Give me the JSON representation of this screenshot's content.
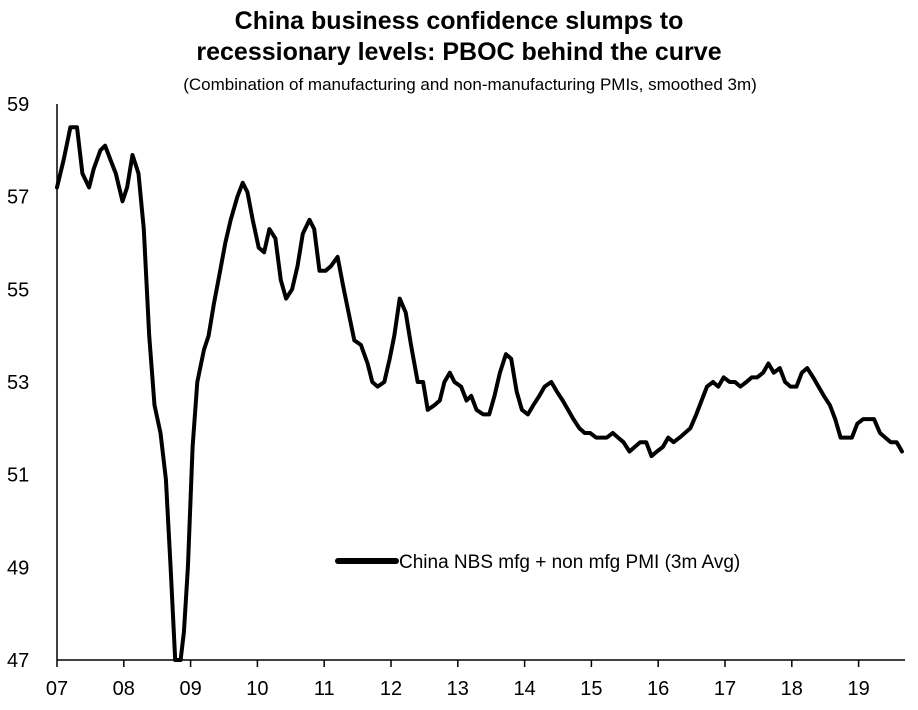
{
  "chart_data": {
    "type": "line",
    "title": "China business confidence slumps to recessionary levels: PBOC behind the curve",
    "title_lines": [
      "China business confidence slumps to",
      "recessionary levels: PBOC behind the curve"
    ],
    "subtitle": "(Combination of manufacturing and non-manufacturing PMIs, smoothed 3m)",
    "xlabel": "",
    "ylabel": "",
    "ylim": [
      47,
      59
    ],
    "yticks": [
      "59",
      "57",
      "55",
      "53",
      "51",
      "49",
      "47"
    ],
    "xticks": [
      "07",
      "08",
      "09",
      "10",
      "11",
      "12",
      "13",
      "14",
      "15",
      "16",
      "17",
      "18",
      "19"
    ],
    "xlim": [
      2007.0,
      2019.75
    ],
    "grid": false,
    "legend_position": "bottom-right",
    "line_color": "#000000",
    "series": [
      {
        "name": "China NBS mfg + non mfg PMI (3m Avg)",
        "points": [
          [
            2007.0,
            57.2
          ],
          [
            2007.1,
            57.8
          ],
          [
            2007.2,
            58.5
          ],
          [
            2007.3,
            58.5
          ],
          [
            2007.38,
            57.5
          ],
          [
            2007.48,
            57.2
          ],
          [
            2007.55,
            57.6
          ],
          [
            2007.65,
            58.0
          ],
          [
            2007.72,
            58.1
          ],
          [
            2007.8,
            57.8
          ],
          [
            2007.88,
            57.5
          ],
          [
            2007.98,
            56.9
          ],
          [
            2008.05,
            57.2
          ],
          [
            2008.13,
            57.9
          ],
          [
            2008.22,
            57.5
          ],
          [
            2008.3,
            56.3
          ],
          [
            2008.38,
            54.0
          ],
          [
            2008.46,
            52.5
          ],
          [
            2008.55,
            51.9
          ],
          [
            2008.63,
            50.9
          ],
          [
            2008.7,
            49.0
          ],
          [
            2008.77,
            47.0
          ],
          [
            2008.85,
            47.0
          ],
          [
            2008.9,
            47.6
          ],
          [
            2008.96,
            49.0
          ],
          [
            2009.03,
            51.6
          ],
          [
            2009.1,
            53.0
          ],
          [
            2009.2,
            53.7
          ],
          [
            2009.27,
            54.0
          ],
          [
            2009.35,
            54.7
          ],
          [
            2009.43,
            55.3
          ],
          [
            2009.52,
            56.0
          ],
          [
            2009.6,
            56.5
          ],
          [
            2009.7,
            57.0
          ],
          [
            2009.78,
            57.3
          ],
          [
            2009.85,
            57.1
          ],
          [
            2009.93,
            56.5
          ],
          [
            2010.02,
            55.9
          ],
          [
            2010.1,
            55.8
          ],
          [
            2010.18,
            56.3
          ],
          [
            2010.27,
            56.1
          ],
          [
            2010.35,
            55.2
          ],
          [
            2010.43,
            54.8
          ],
          [
            2010.52,
            55.0
          ],
          [
            2010.6,
            55.5
          ],
          [
            2010.68,
            56.2
          ],
          [
            2010.78,
            56.5
          ],
          [
            2010.85,
            56.3
          ],
          [
            2010.93,
            55.4
          ],
          [
            2011.02,
            55.4
          ],
          [
            2011.1,
            55.5
          ],
          [
            2011.2,
            55.7
          ],
          [
            2011.28,
            55.1
          ],
          [
            2011.35,
            54.6
          ],
          [
            2011.45,
            53.9
          ],
          [
            2011.55,
            53.8
          ],
          [
            2011.65,
            53.4
          ],
          [
            2011.72,
            53.0
          ],
          [
            2011.8,
            52.9
          ],
          [
            2011.9,
            53.0
          ],
          [
            2011.98,
            53.5
          ],
          [
            2012.05,
            54.0
          ],
          [
            2012.13,
            54.8
          ],
          [
            2012.22,
            54.5
          ],
          [
            2012.3,
            53.8
          ],
          [
            2012.4,
            53.0
          ],
          [
            2012.48,
            53.0
          ],
          [
            2012.55,
            52.4
          ],
          [
            2012.65,
            52.5
          ],
          [
            2012.73,
            52.6
          ],
          [
            2012.8,
            53.0
          ],
          [
            2012.88,
            53.2
          ],
          [
            2012.95,
            53.0
          ],
          [
            2013.05,
            52.9
          ],
          [
            2013.13,
            52.6
          ],
          [
            2013.2,
            52.7
          ],
          [
            2013.28,
            52.4
          ],
          [
            2013.38,
            52.3
          ],
          [
            2013.47,
            52.3
          ],
          [
            2013.55,
            52.7
          ],
          [
            2013.63,
            53.2
          ],
          [
            2013.72,
            53.6
          ],
          [
            2013.8,
            53.5
          ],
          [
            2013.88,
            52.8
          ],
          [
            2013.96,
            52.4
          ],
          [
            2014.05,
            52.3
          ],
          [
            2014.13,
            52.5
          ],
          [
            2014.22,
            52.7
          ],
          [
            2014.3,
            52.9
          ],
          [
            2014.4,
            53.0
          ],
          [
            2014.48,
            52.8
          ],
          [
            2014.57,
            52.6
          ],
          [
            2014.65,
            52.4
          ],
          [
            2014.73,
            52.2
          ],
          [
            2014.82,
            52.0
          ],
          [
            2014.9,
            51.9
          ],
          [
            2014.98,
            51.9
          ],
          [
            2015.07,
            51.8
          ],
          [
            2015.15,
            51.8
          ],
          [
            2015.23,
            51.8
          ],
          [
            2015.32,
            51.9
          ],
          [
            2015.4,
            51.8
          ],
          [
            2015.48,
            51.7
          ],
          [
            2015.57,
            51.5
          ],
          [
            2015.65,
            51.6
          ],
          [
            2015.73,
            51.7
          ],
          [
            2015.82,
            51.7
          ],
          [
            2015.9,
            51.4
          ],
          [
            2015.98,
            51.5
          ],
          [
            2016.07,
            51.6
          ],
          [
            2016.15,
            51.8
          ],
          [
            2016.23,
            51.7
          ],
          [
            2016.32,
            51.8
          ],
          [
            2016.4,
            51.9
          ],
          [
            2016.48,
            52.0
          ],
          [
            2016.57,
            52.3
          ],
          [
            2016.65,
            52.6
          ],
          [
            2016.73,
            52.9
          ],
          [
            2016.82,
            53.0
          ],
          [
            2016.9,
            52.9
          ],
          [
            2016.98,
            53.1
          ],
          [
            2017.07,
            53.0
          ],
          [
            2017.15,
            53.0
          ],
          [
            2017.23,
            52.9
          ],
          [
            2017.32,
            53.0
          ],
          [
            2017.4,
            53.1
          ],
          [
            2017.48,
            53.1
          ],
          [
            2017.57,
            53.2
          ],
          [
            2017.65,
            53.4
          ],
          [
            2017.73,
            53.2
          ],
          [
            2017.82,
            53.3
          ],
          [
            2017.9,
            53.0
          ],
          [
            2017.98,
            52.9
          ],
          [
            2018.07,
            52.9
          ],
          [
            2018.15,
            53.2
          ],
          [
            2018.23,
            53.3
          ],
          [
            2018.32,
            53.1
          ],
          [
            2018.4,
            52.9
          ],
          [
            2018.48,
            52.7
          ],
          [
            2018.57,
            52.5
          ],
          [
            2018.65,
            52.2
          ],
          [
            2018.73,
            51.8
          ],
          [
            2018.82,
            51.8
          ],
          [
            2018.9,
            51.8
          ],
          [
            2018.98,
            52.1
          ],
          [
            2019.07,
            52.2
          ],
          [
            2019.15,
            52.2
          ],
          [
            2019.23,
            52.2
          ],
          [
            2019.32,
            51.9
          ],
          [
            2019.4,
            51.8
          ],
          [
            2019.48,
            51.7
          ],
          [
            2019.57,
            51.7
          ],
          [
            2019.65,
            51.5
          ]
        ]
      }
    ]
  }
}
